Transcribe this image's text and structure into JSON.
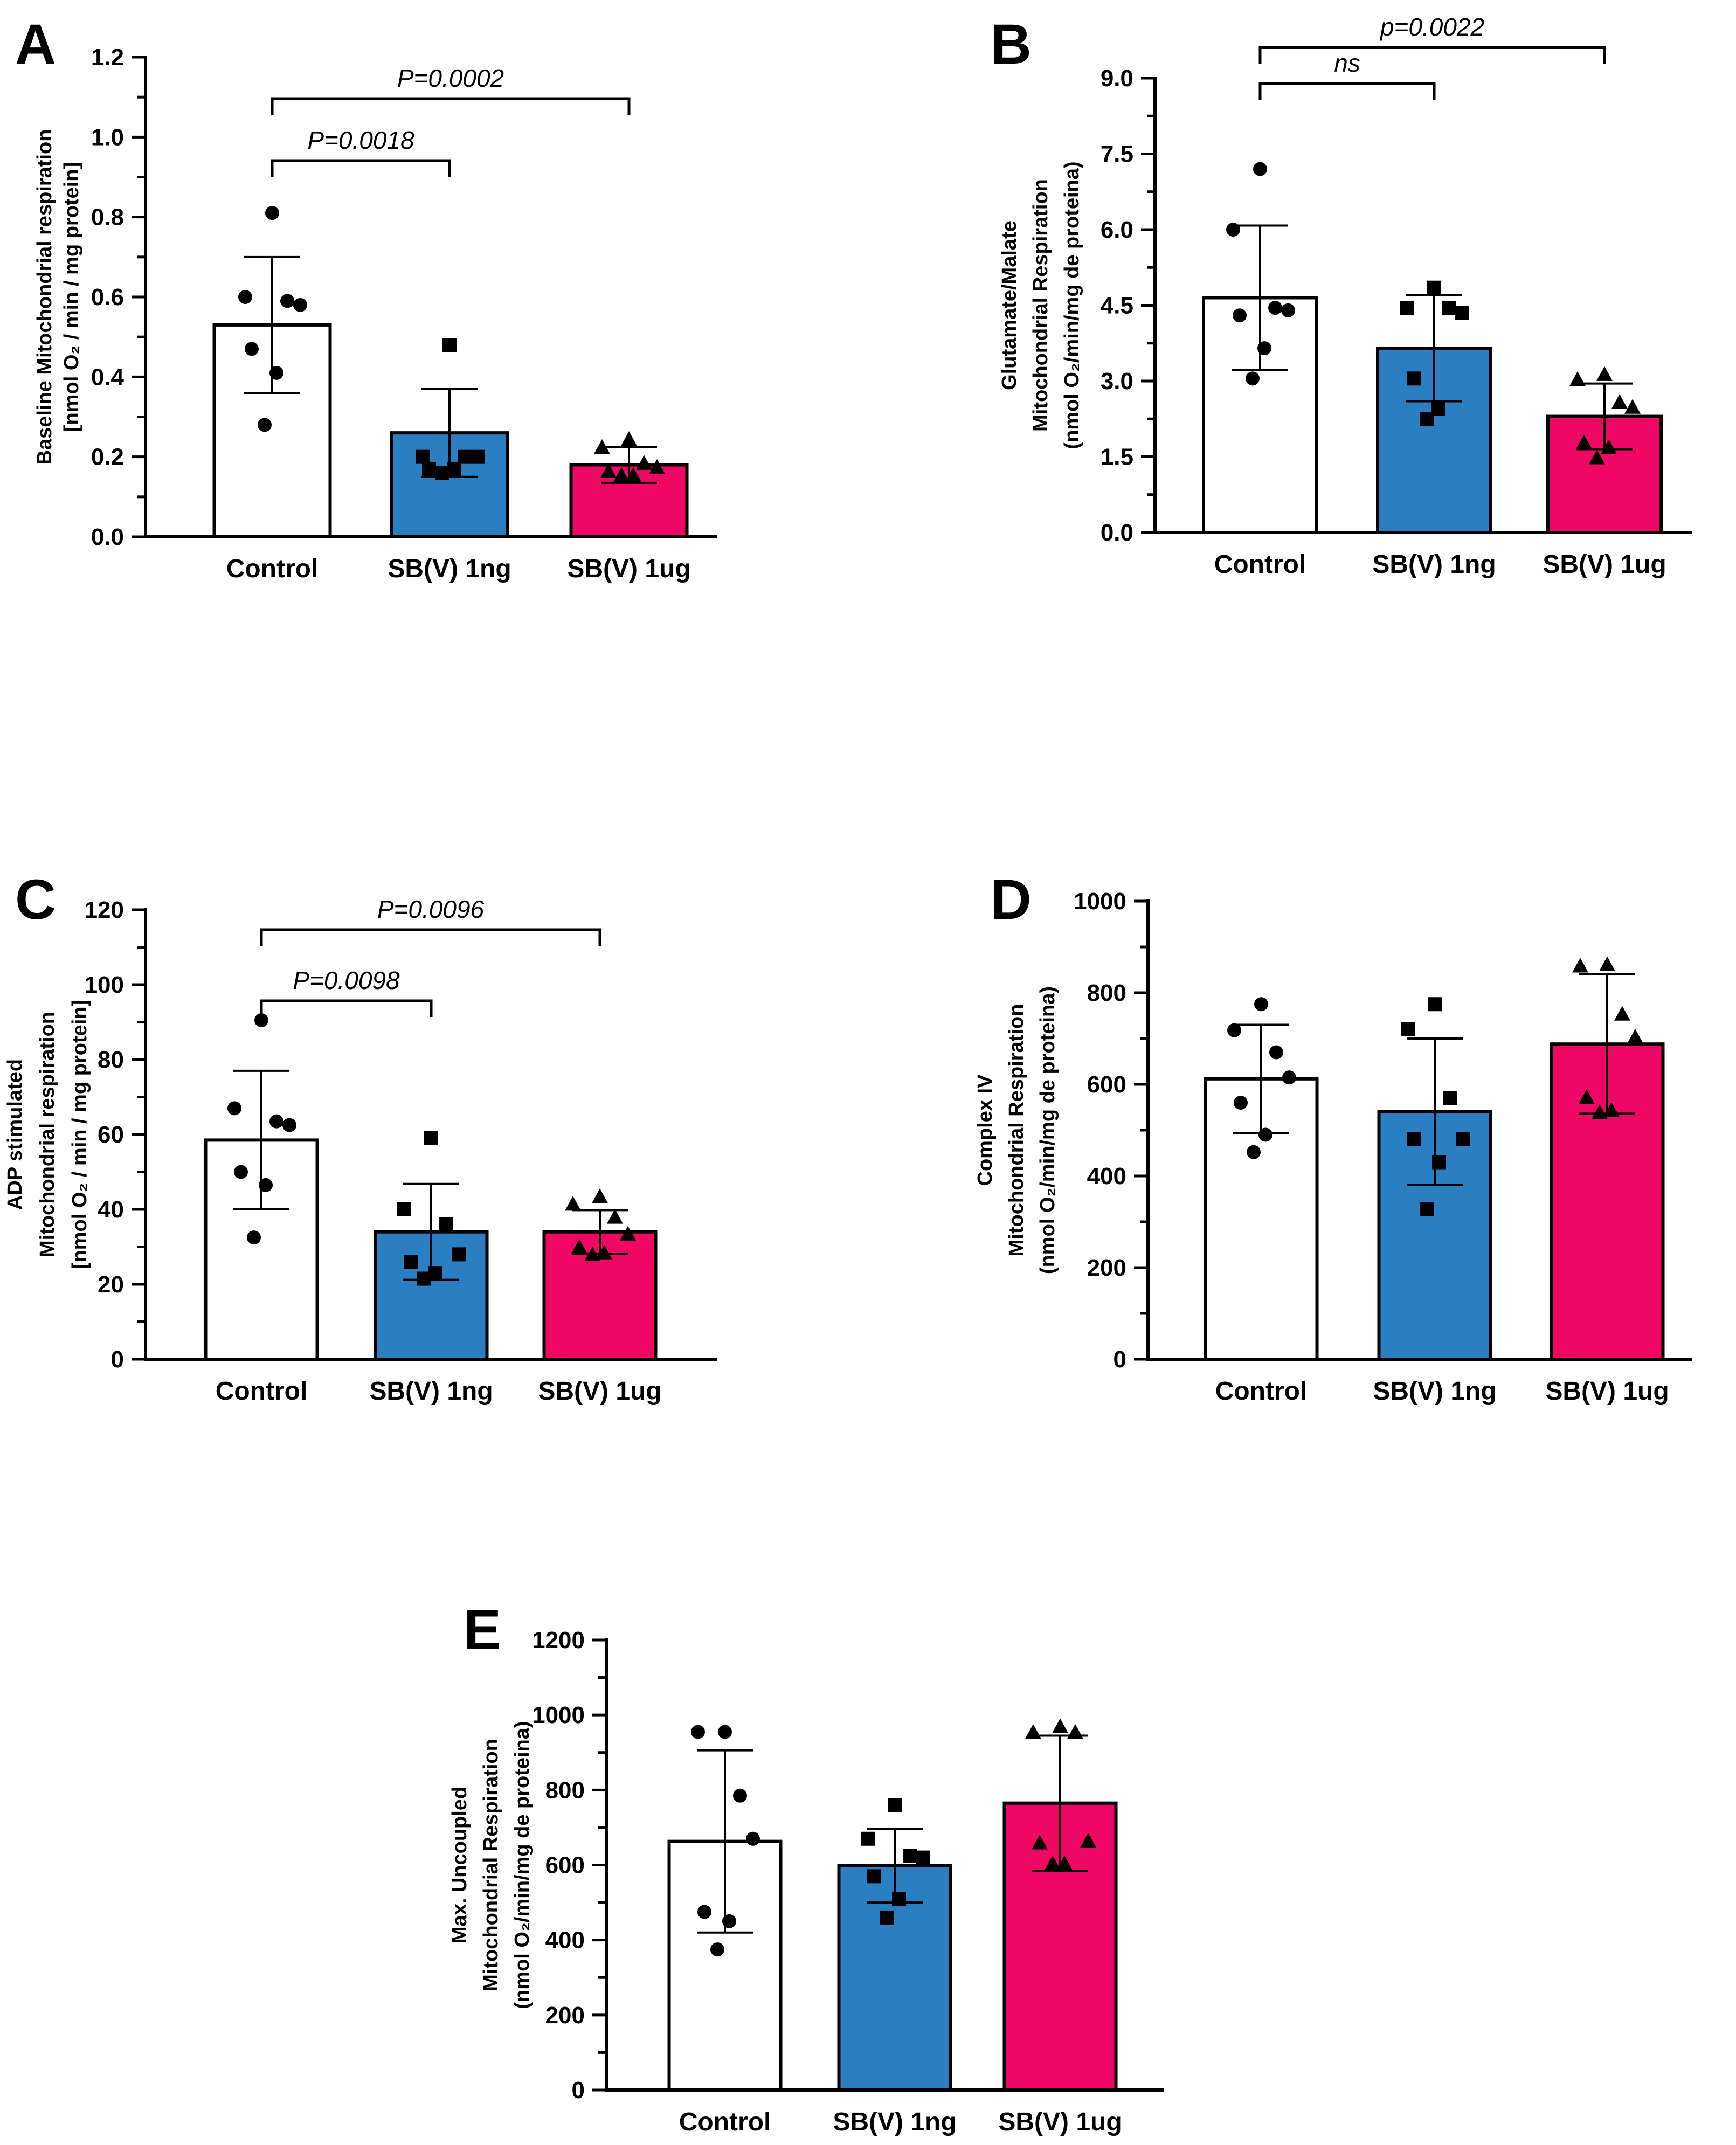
{
  "chart_data": [
    {
      "panel": "A",
      "type": "bar",
      "categories": [
        "Control",
        "SB(V) 1ng",
        "SB(V) 1ug"
      ],
      "colors": [
        "#ffffff",
        "#2a7fc2",
        "#ef0766"
      ],
      "markers": [
        "circle",
        "square",
        "triangle"
      ],
      "ylabel_lines": [
        "Baseline Mitochondrial respiration",
        "[nmol O₂ / min / mg protein]"
      ],
      "ylim": [
        0,
        1.2
      ],
      "yticks": [
        0.0,
        0.2,
        0.4,
        0.6,
        0.8,
        1.0,
        1.2
      ],
      "ytick_labels": [
        "0.0",
        "0.2",
        "0.4",
        "0.6",
        "0.8",
        "1.0",
        "1.2"
      ],
      "minor_ticks": 1,
      "means": [
        0.53,
        0.26,
        0.18
      ],
      "sd": [
        0.17,
        0.11,
        0.045
      ],
      "points": [
        [
          0.81,
          0.6,
          0.59,
          0.58,
          0.47,
          0.41,
          0.28
        ],
        [
          0.48,
          0.2,
          0.2,
          0.2,
          0.17,
          0.17,
          0.16
        ],
        [
          0.24,
          0.22,
          0.18,
          0.17,
          0.16,
          0.15,
          0.15
        ]
      ],
      "comparisons": [
        {
          "from": 0,
          "to": 1,
          "label": "P=0.0018"
        },
        {
          "from": 0,
          "to": 2,
          "label": "P=0.0002"
        }
      ]
    },
    {
      "panel": "B",
      "type": "bar",
      "categories": [
        "Control",
        "SB(V) 1ng",
        "SB(V) 1ug"
      ],
      "colors": [
        "#ffffff",
        "#2a7fc2",
        "#ef0766"
      ],
      "markers": [
        "circle",
        "square",
        "triangle"
      ],
      "ylabel_lines": [
        "Glutamate/Malate",
        "Mitochondrial  Respiration",
        "(nmol O₂/min/mg de proteina)"
      ],
      "ylim": [
        0,
        9.0
      ],
      "yticks": [
        0.0,
        1.5,
        3.0,
        4.5,
        6.0,
        7.5,
        9.0
      ],
      "ytick_labels": [
        "0.0",
        "1.5",
        "3.0",
        "4.5",
        "6.0",
        "7.5",
        "9.0"
      ],
      "minor_ticks": 1,
      "means": [
        4.65,
        3.65,
        2.3
      ],
      "sd": [
        1.43,
        1.05,
        0.65
      ],
      "points": [
        [
          7.2,
          6.0,
          4.45,
          4.4,
          4.3,
          3.65,
          3.05
        ],
        [
          4.85,
          4.45,
          4.45,
          4.35,
          3.05,
          2.45,
          2.25
        ],
        [
          3.1,
          3.0,
          2.55,
          2.45,
          1.75,
          1.65,
          1.45
        ]
      ],
      "comparisons": [
        {
          "from": 0,
          "to": 1,
          "label": "ns"
        },
        {
          "from": 0,
          "to": 2,
          "label": "p=0.0022"
        }
      ]
    },
    {
      "panel": "C",
      "type": "bar",
      "categories": [
        "Control",
        "SB(V) 1ng",
        "SB(V) 1ug"
      ],
      "colors": [
        "#ffffff",
        "#2a7fc2",
        "#ef0766"
      ],
      "markers": [
        "circle",
        "square",
        "triangle"
      ],
      "ylabel_lines": [
        "ADP stimulated",
        "Mitochondrial respiration",
        "[nmol O₂ / min / mg protein]"
      ],
      "ylim": [
        0,
        120
      ],
      "yticks": [
        0,
        20,
        40,
        60,
        80,
        100,
        120
      ],
      "ytick_labels": [
        "0",
        "20",
        "40",
        "60",
        "80",
        "100",
        "120"
      ],
      "minor_ticks": 1,
      "means": [
        58.5,
        34.0,
        34.0
      ],
      "sd": [
        18.5,
        12.8,
        5.8
      ],
      "points": [
        [
          90.5,
          67.0,
          63.5,
          62.5,
          50.0,
          46.5,
          32.5
        ],
        [
          59.0,
          40.0,
          36.0,
          28.0,
          26.0,
          23.0,
          21.5
        ],
        [
          43.0,
          41.0,
          37.5,
          33.0,
          29.5,
          28.0,
          27.5
        ]
      ],
      "comparisons": [
        {
          "from": 0,
          "to": 1,
          "label": "P=0.0098"
        },
        {
          "from": 0,
          "to": 2,
          "label": "P=0.0096"
        }
      ]
    },
    {
      "panel": "D",
      "type": "bar",
      "categories": [
        "Control",
        "SB(V) 1ng",
        "SB(V) 1ug"
      ],
      "colors": [
        "#ffffff",
        "#2a7fc2",
        "#ef0766"
      ],
      "markers": [
        "circle",
        "square",
        "triangle"
      ],
      "ylabel_lines": [
        "Complex IV",
        "Mitochondrial Respiration",
        "(nmol O₂/min/mg de proteina)"
      ],
      "ylim": [
        0,
        1000
      ],
      "yticks": [
        0,
        200,
        400,
        600,
        800,
        1000
      ],
      "ytick_labels": [
        "0",
        "200",
        "400",
        "600",
        "800",
        "1000"
      ],
      "minor_ticks": 1,
      "means": [
        612,
        540,
        688
      ],
      "sd": [
        118,
        160,
        152
      ],
      "points": [
        [
          775,
          718,
          670,
          615,
          560,
          490,
          452
        ],
        [
          775,
          720,
          570,
          480,
          480,
          430,
          328
        ],
        [
          858,
          855,
          750,
          700,
          568,
          540,
          535
        ]
      ],
      "comparisons": []
    },
    {
      "panel": "E",
      "type": "bar",
      "categories": [
        "Control",
        "SB(V) 1ng",
        "SB(V) 1ug"
      ],
      "colors": [
        "#ffffff",
        "#2a7fc2",
        "#ef0766"
      ],
      "markers": [
        "circle",
        "square",
        "triangle"
      ],
      "ylabel_lines": [
        "Max. Uncoupled",
        "Mitochondrial Respiration",
        "(nmol O₂/min/mg de proteina)"
      ],
      "ylim": [
        0,
        1200
      ],
      "yticks": [
        0,
        200,
        400,
        600,
        800,
        1000,
        1200
      ],
      "ytick_labels": [
        "0",
        "200",
        "400",
        "600",
        "800",
        "1000",
        "1200"
      ],
      "minor_ticks": 1,
      "means": [
        663,
        598,
        765
      ],
      "sd": [
        243,
        98,
        180
      ],
      "points": [
        [
          955,
          955,
          785,
          670,
          475,
          450,
          375
        ],
        [
          760,
          670,
          625,
          620,
          570,
          510,
          460
        ],
        [
          965,
          950,
          950,
          660,
          655,
          600,
          600
        ]
      ],
      "comparisons": []
    }
  ]
}
